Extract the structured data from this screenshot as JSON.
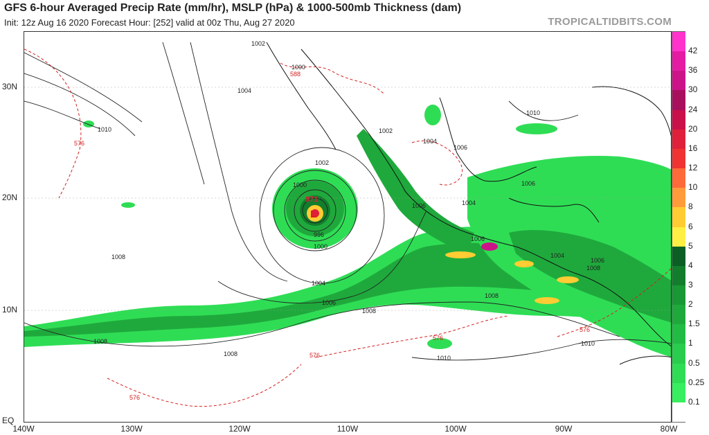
{
  "header": {
    "title": "GFS 6-hour Averaged Precip Rate (mm/hr), MSLP (hPa) & 1000-500mb Thickness (dam)",
    "subtitle": "Init: 12z Aug 16 2020   Forecast Hour: [252]   valid at 00z Thu, Aug 27 2020",
    "brand": "TROPICALTIDBITS.COM"
  },
  "axes": {
    "lat_labels": [
      "30N",
      "20N",
      "10N",
      "EQ"
    ],
    "lon_labels": [
      "140W",
      "130W",
      "120W",
      "110W",
      "100W",
      "90W",
      "80W"
    ]
  },
  "colorbar": {
    "labels": [
      "42",
      "36",
      "30",
      "24",
      "20",
      "16",
      "12",
      "10",
      "8",
      "6",
      "5",
      "4",
      "3",
      "2",
      "1.5",
      "1",
      "0.5",
      "0.25",
      "0.1"
    ],
    "colors": [
      "#ff33cc",
      "#e51ca3",
      "#cc1488",
      "#a8105e",
      "#c9104a",
      "#e0203a",
      "#f03232",
      "#ff6a3a",
      "#ff9b3a",
      "#ffcc33",
      "#ffef44",
      "#0b5f24",
      "#127d2c",
      "#199836",
      "#1fa93c",
      "#22bb44",
      "#29cc4c",
      "#2fdd55",
      "#37ef5e",
      "#ffffff"
    ]
  },
  "map": {
    "low_center_label": "L",
    "low_pressure_label": "971",
    "isobar_labels": [
      "1002",
      "1000",
      "1004",
      "1010",
      "1002",
      "1002",
      "1006",
      "1000",
      "996",
      "1000",
      "1004",
      "1006",
      "1008",
      "1006",
      "1004",
      "1006",
      "1008",
      "1006",
      "1008",
      "1004",
      "1008",
      "1010",
      "1008",
      "1008",
      "1010",
      "1010",
      "1006",
      "1004"
    ],
    "thickness_labels": [
      "588",
      "576",
      "576",
      "576",
      "576",
      "576"
    ]
  }
}
